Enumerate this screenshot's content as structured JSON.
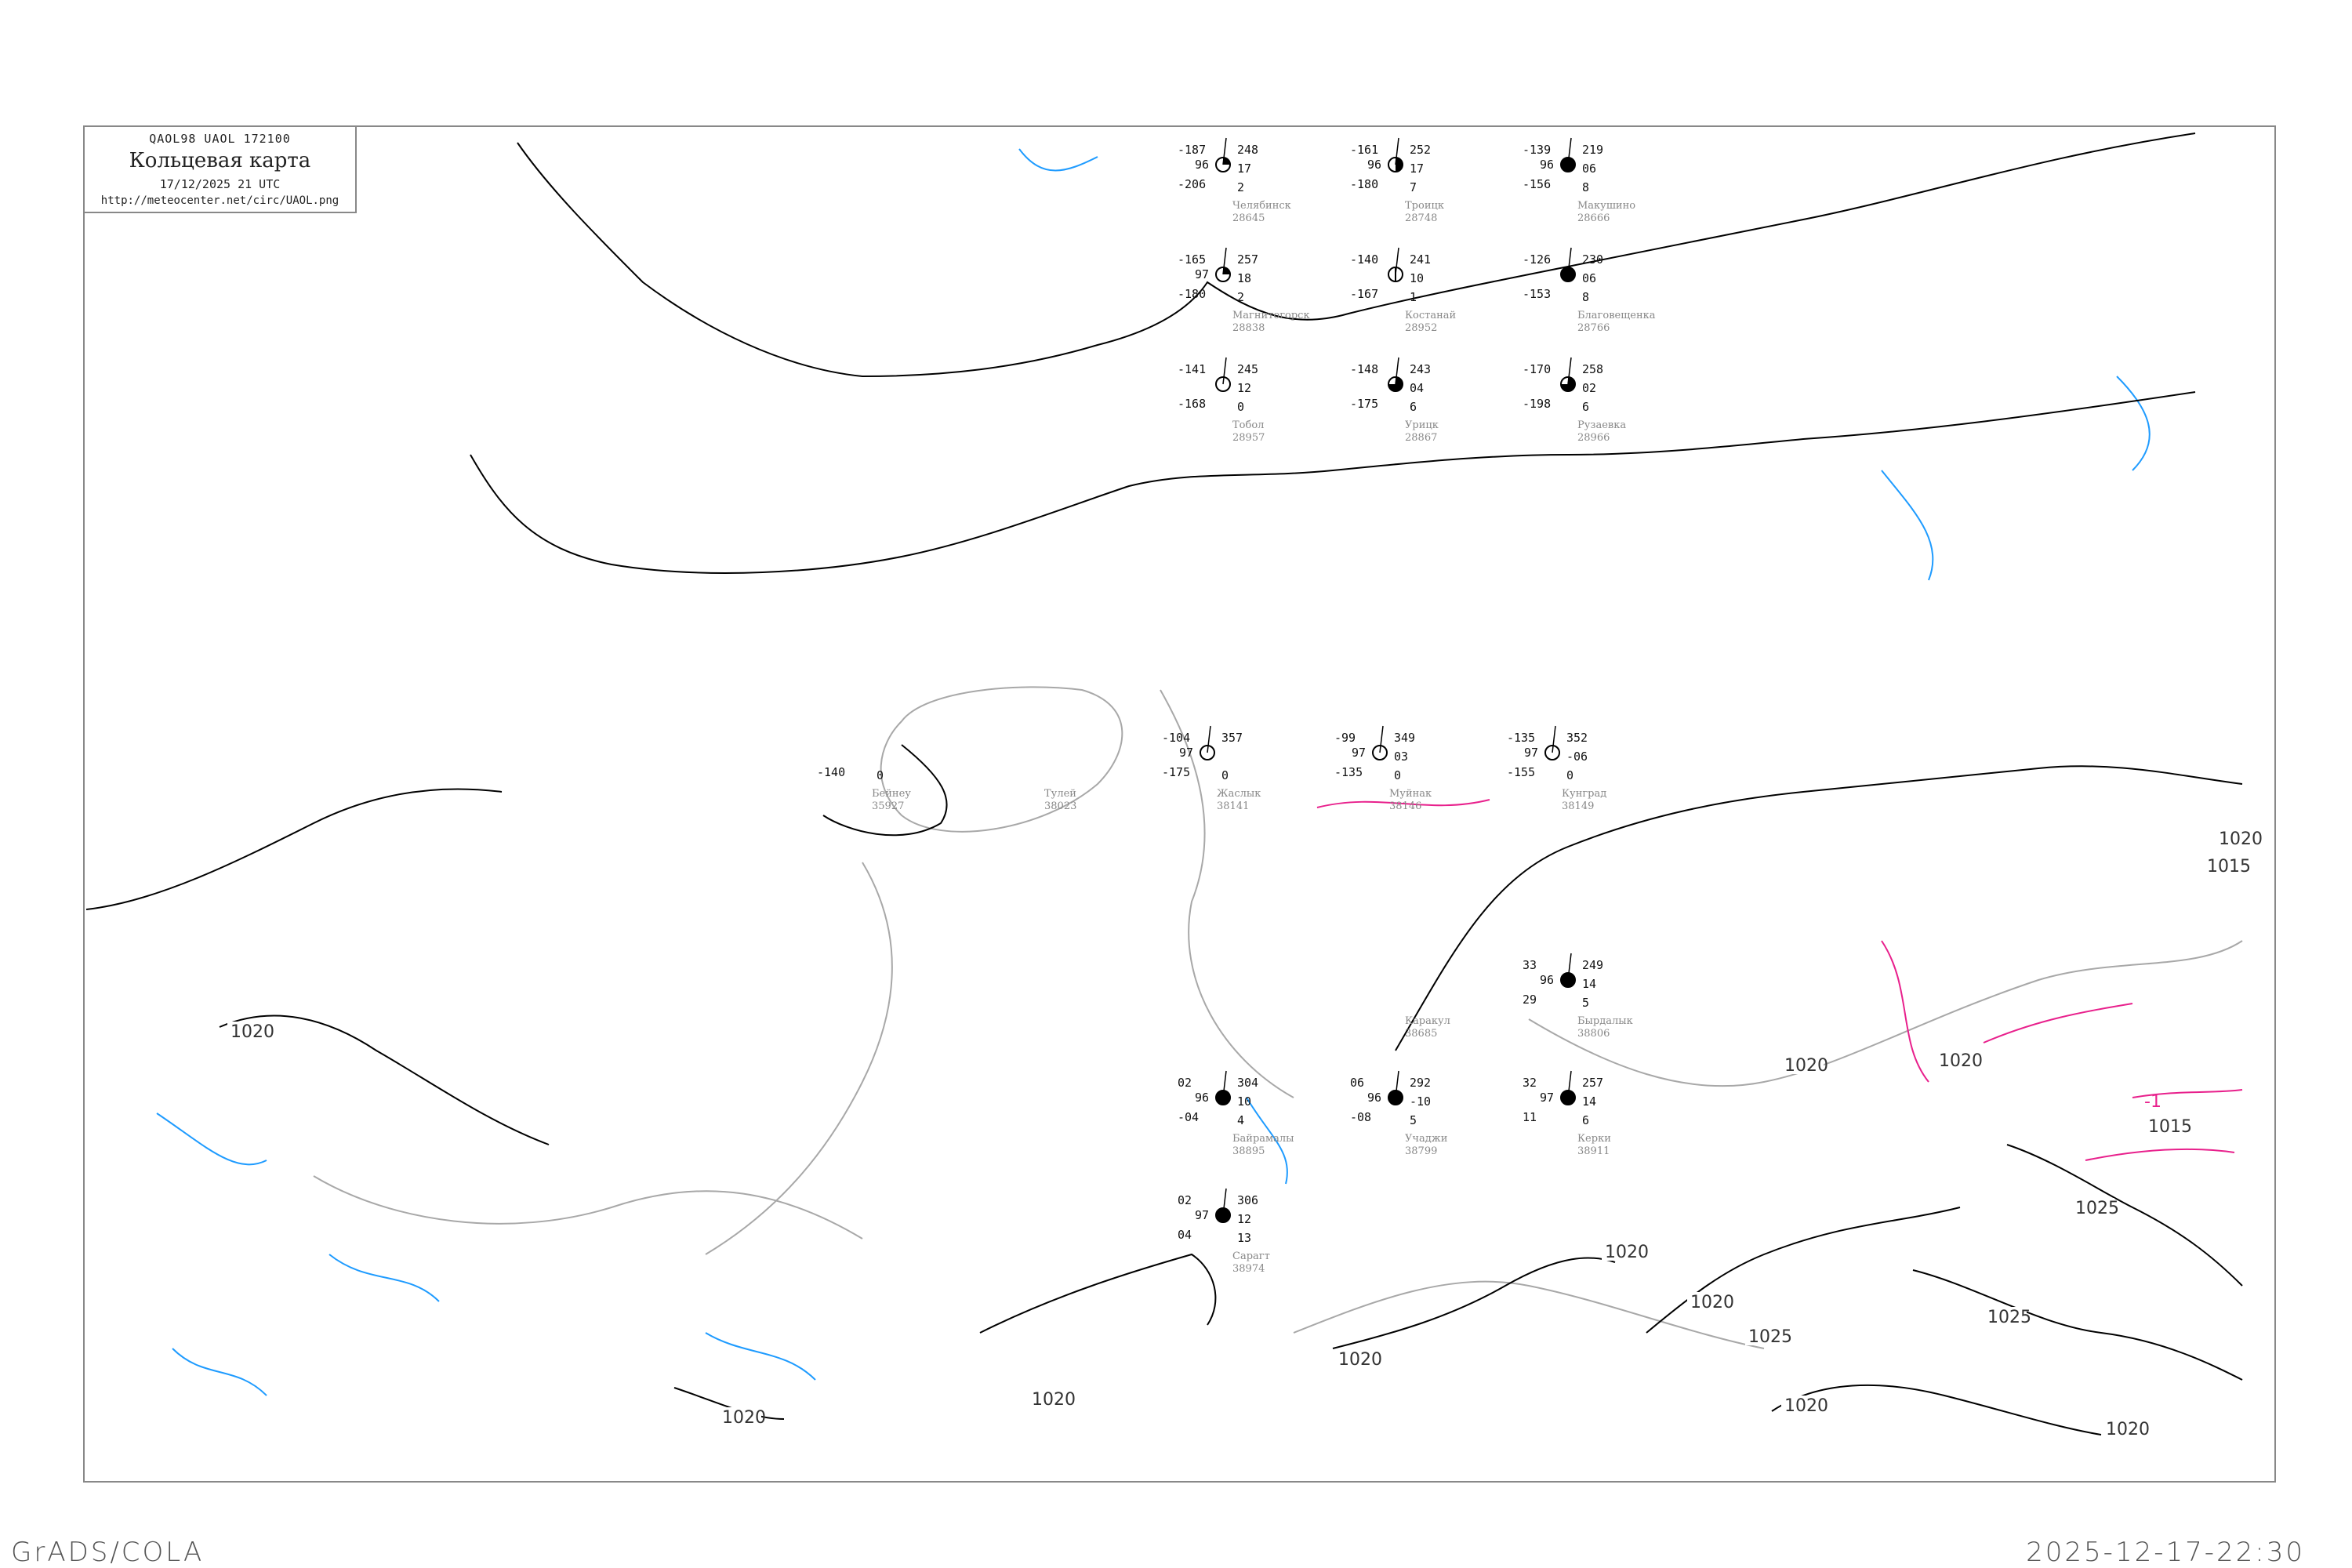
{
  "header": {
    "code": "QAOL98   UAOL   172100",
    "title": "Кольцевая карта",
    "datetime": "17/12/2025 21 UTC",
    "url": "http://meteocenter.net/circ/UAOL.png"
  },
  "footer": {
    "left": "GrADS/COLA",
    "right": "2025-12-17-22:30"
  },
  "colors": {
    "isobar": "#000000",
    "coast": "#a0a0a0",
    "river": "#1e9bff",
    "isallobar": "#e8208c",
    "snow_marker": "#3a8cf0",
    "rain_marker": "#22c040",
    "fog_marker": "#f4f08a"
  },
  "isobar_labels": [
    "1020",
    "1020",
    "1020",
    "1020",
    "1020",
    "1020",
    "1020",
    "1020",
    "1020",
    "1020",
    "1020",
    "1015",
    "1015",
    "1025",
    "1025",
    "1025"
  ],
  "isallobar_label": "-1",
  "stations": [
    {
      "name": "Челябинск",
      "id": "28645",
      "temp": "-187",
      "pressure": "248",
      "pp": "96",
      "dew": "-206",
      "tend": "17",
      "low": "2",
      "cover": "partial"
    },
    {
      "name": "Троицк",
      "id": "28748",
      "temp": "-161",
      "pressure": "252",
      "pp": "96",
      "dew": "-180",
      "tend": "17",
      "low": "7",
      "cover": "half"
    },
    {
      "name": "Магнитогорск",
      "id": "28838",
      "temp": "-165",
      "pressure": "257",
      "pp": "97",
      "dew": "-180",
      "tend": "18",
      "low": "2",
      "cover": "partial"
    },
    {
      "name": "Костанай",
      "id": "28952",
      "temp": "-140",
      "pressure": "241",
      "pp": "",
      "dew": "-167",
      "tend": "10",
      "low": "1",
      "cover": "clear-bar"
    },
    {
      "name": "Тобол",
      "id": "28957",
      "temp": "-141",
      "pressure": "245",
      "pp": "",
      "dew": "-168",
      "tend": "12",
      "low": "0",
      "cover": "clear"
    },
    {
      "name": "Макушино",
      "id": "28666",
      "temp": "-139",
      "pressure": "219",
      "pp": "96",
      "dew": "-156",
      "tend": "06",
      "low": "8",
      "cover": "overcast"
    },
    {
      "name": "Благовещенка",
      "id": "28766",
      "temp": "-126",
      "pressure": "230",
      "pp": "",
      "dew": "-153",
      "tend": "06",
      "low": "8",
      "cover": "overcast"
    },
    {
      "name": "Урицк",
      "id": "28867",
      "temp": "-148",
      "pressure": "243",
      "pp": "",
      "dew": "-175",
      "tend": "04",
      "low": "6",
      "cover": "most"
    },
    {
      "name": "Рузаевка",
      "id": "28966",
      "temp": "-170",
      "pressure": "258",
      "pp": "",
      "dew": "-198",
      "tend": "02",
      "low": "6",
      "cover": "most"
    },
    {
      "name": "Тулей",
      "id": "38023",
      "temp": "",
      "pressure": "",
      "pp": "",
      "dew": "",
      "tend": "",
      "low": "",
      "cover": "none"
    },
    {
      "name": "Бейнеу",
      "id": "35927",
      "temp": "",
      "pressure": "",
      "pp": "",
      "dew": "-140",
      "tend": "",
      "low": "0",
      "cover": "none"
    },
    {
      "name": "Жаслык",
      "id": "38141",
      "temp": "-104",
      "pressure": "357",
      "pp": "97",
      "dew": "-175",
      "tend": "",
      "low": "0",
      "cover": "clear"
    },
    {
      "name": "Муйнак",
      "id": "38146",
      "temp": "-99",
      "pressure": "349",
      "pp": "97",
      "dew": "-135",
      "tend": "03",
      "low": "0",
      "cover": "clear"
    },
    {
      "name": "Кунград",
      "id": "38149",
      "temp": "-135",
      "pressure": "352",
      "pp": "97",
      "dew": "-155",
      "tend": "-06",
      "low": "0",
      "cover": "clear"
    },
    {
      "name": "Учаджи",
      "id": "38799",
      "temp": "06",
      "pressure": "292",
      "pp": "96",
      "dew": "-08",
      "tend": "-10",
      "low": "5",
      "cover": "overcast"
    },
    {
      "name": "Байрамалы",
      "id": "38895",
      "temp": "02",
      "pressure": "304",
      "pp": "96",
      "dew": "-04",
      "tend": "10",
      "low": "4",
      "cover": "overcast"
    },
    {
      "name": "Сарагт",
      "id": "38974",
      "temp": "02",
      "pressure": "306",
      "pp": "97",
      "dew": "04",
      "tend": "12",
      "low": "13",
      "cover": "overcast"
    },
    {
      "name": "Бырдалык",
      "id": "38806",
      "temp": "33",
      "pressure": "249",
      "pp": "96",
      "dew": "29",
      "tend": "14",
      "low": "5",
      "cover": "overcast"
    },
    {
      "name": "Керки",
      "id": "38911",
      "temp": "32",
      "pressure": "257",
      "pp": "97",
      "dew": "11",
      "tend": "14",
      "low": "6",
      "cover": "overcast"
    },
    {
      "name": "Каракул",
      "id": "38685",
      "temp": "",
      "pressure": "",
      "pp": "",
      "dew": "",
      "tend": "",
      "low": "",
      "cover": "none"
    }
  ]
}
